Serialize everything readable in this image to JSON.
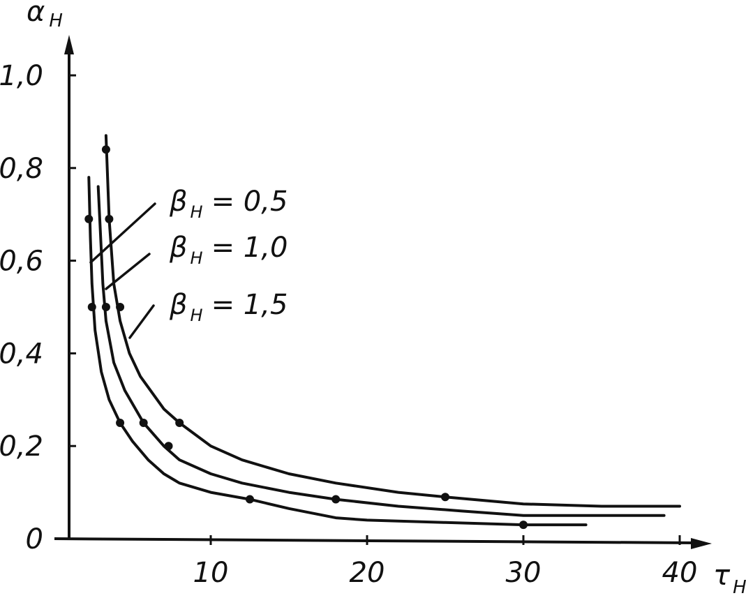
{
  "chart_data": {
    "type": "line",
    "title": "",
    "xlabel": "τ",
    "xlabel_sub": "H",
    "ylabel": "α",
    "ylabel_sub": "H",
    "xlim": [
      0,
      40
    ],
    "ylim": [
      0,
      1.05
    ],
    "grid": false,
    "legend": "none",
    "x_ticks": [
      {
        "value": 10,
        "label": "10"
      },
      {
        "value": 20,
        "label": "20"
      },
      {
        "value": 30,
        "label": "30"
      },
      {
        "value": 40,
        "label": "40"
      }
    ],
    "y_ticks": [
      {
        "value": 0,
        "label": "0"
      },
      {
        "value": 0.2,
        "label": "0,2"
      },
      {
        "value": 0.4,
        "label": "0,4"
      },
      {
        "value": 0.6,
        "label": "0,6"
      },
      {
        "value": 0.8,
        "label": "0,8"
      },
      {
        "value": 1.0,
        "label": "1,0"
      }
    ],
    "series": [
      {
        "label_prefix": "β",
        "label_sub": "H",
        "label_value": "= 0,5",
        "curve": [
          [
            2.2,
            0.78
          ],
          [
            2.3,
            0.65
          ],
          [
            2.4,
            0.55
          ],
          [
            2.6,
            0.45
          ],
          [
            3.0,
            0.36
          ],
          [
            3.5,
            0.3
          ],
          [
            4.2,
            0.25
          ],
          [
            5,
            0.21
          ],
          [
            6,
            0.17
          ],
          [
            7,
            0.14
          ],
          [
            8,
            0.12
          ],
          [
            10,
            0.1
          ],
          [
            12.5,
            0.085
          ],
          [
            15,
            0.065
          ],
          [
            18,
            0.045
          ],
          [
            20,
            0.04
          ],
          [
            25,
            0.035
          ],
          [
            30,
            0.03
          ],
          [
            34,
            0.03
          ]
        ],
        "points": [
          [
            2.2,
            0.69
          ],
          [
            2.4,
            0.5
          ],
          [
            4.2,
            0.25
          ],
          [
            12.5,
            0.085
          ],
          [
            30,
            0.03
          ]
        ]
      },
      {
        "label_prefix": "β",
        "label_sub": "H",
        "label_value": "= 1,0",
        "curve": [
          [
            2.8,
            0.76
          ],
          [
            3.0,
            0.62
          ],
          [
            3.1,
            0.55
          ],
          [
            3.3,
            0.47
          ],
          [
            3.8,
            0.38
          ],
          [
            4.5,
            0.32
          ],
          [
            5.7,
            0.25
          ],
          [
            7,
            0.2
          ],
          [
            8,
            0.17
          ],
          [
            10,
            0.14
          ],
          [
            12,
            0.12
          ],
          [
            15,
            0.1
          ],
          [
            18,
            0.085
          ],
          [
            22,
            0.07
          ],
          [
            26,
            0.06
          ],
          [
            30,
            0.05
          ],
          [
            39,
            0.05
          ]
        ],
        "points": [
          [
            3.3,
            0.5
          ],
          [
            5.7,
            0.25
          ],
          [
            7.3,
            0.2
          ],
          [
            18,
            0.085
          ]
        ]
      },
      {
        "label_prefix": "β",
        "label_sub": "H",
        "label_value": "= 1,5",
        "curve": [
          [
            3.3,
            0.87
          ],
          [
            3.5,
            0.69
          ],
          [
            3.8,
            0.55
          ],
          [
            4.2,
            0.47
          ],
          [
            4.8,
            0.4
          ],
          [
            5.5,
            0.35
          ],
          [
            7,
            0.28
          ],
          [
            8,
            0.25
          ],
          [
            10,
            0.2
          ],
          [
            12,
            0.17
          ],
          [
            15,
            0.14
          ],
          [
            18,
            0.12
          ],
          [
            22,
            0.1
          ],
          [
            25,
            0.09
          ],
          [
            30,
            0.075
          ],
          [
            35,
            0.07
          ],
          [
            40,
            0.07
          ]
        ],
        "points": [
          [
            3.3,
            0.84
          ],
          [
            3.5,
            0.69
          ],
          [
            4.2,
            0.5
          ],
          [
            8,
            0.25
          ],
          [
            25,
            0.09
          ]
        ]
      }
    ]
  }
}
